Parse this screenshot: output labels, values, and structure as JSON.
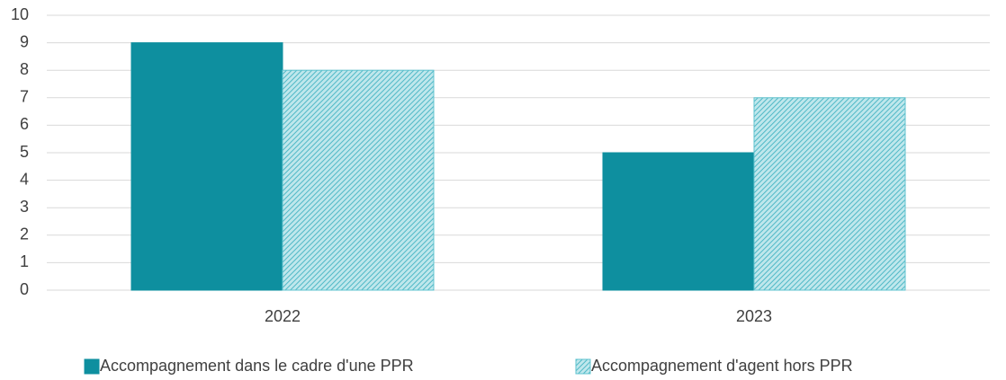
{
  "chart_data": {
    "type": "bar",
    "categories": [
      "2022",
      "2023"
    ],
    "series": [
      {
        "name": "Accompagnement dans le cadre d'une PPR",
        "color": "#0e8f9f",
        "hatch": false,
        "values": [
          9,
          5
        ]
      },
      {
        "name": "Accompagnement d'agent hors PPR",
        "color": "#5fc3cf",
        "hatch": true,
        "values": [
          8,
          7
        ]
      }
    ],
    "ylim": [
      0,
      10
    ],
    "yticks": [
      0,
      1,
      2,
      3,
      4,
      5,
      6,
      7,
      8,
      9,
      10
    ],
    "grid": true,
    "legend": "bottom"
  }
}
